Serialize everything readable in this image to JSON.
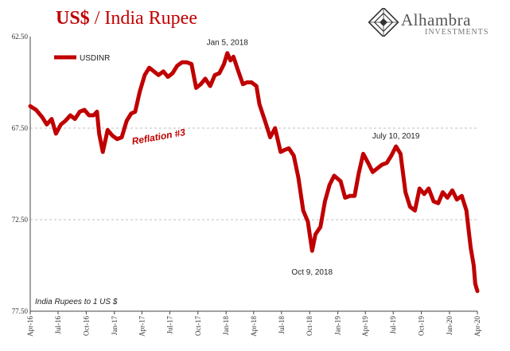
{
  "title": {
    "part1": "US$",
    "part2": " / India Rupee"
  },
  "logo": {
    "name": "Alhambra",
    "subtitle": "INVESTMENTS",
    "icon": "diamond-lattice-icon"
  },
  "chart_data": {
    "type": "line",
    "inverted_y": true,
    "ylim": [
      62.5,
      77.5
    ],
    "yticks": [
      "62.50",
      "67.50",
      "72.50",
      "77.50"
    ],
    "grid": "horizontal dashed",
    "xlim": [
      "2016-04-01",
      "2020-04-01"
    ],
    "xticks": [
      "Apr-16",
      "Jul-16",
      "Oct-16",
      "Jan-17",
      "Apr-17",
      "Jul-17",
      "Oct-17",
      "Jan-18",
      "Apr-18",
      "Jul-18",
      "Oct-18",
      "Jan-19",
      "Apr-19",
      "Jul-19",
      "Oct-19",
      "Jan-20",
      "Apr-20"
    ],
    "legend": {
      "position": "top-left",
      "entries": [
        "USDINR"
      ]
    },
    "series": [
      {
        "name": "USDINR",
        "color": "#c00000",
        "points": [
          [
            "2016-04-01",
            66.3
          ],
          [
            "2016-04-20",
            66.5
          ],
          [
            "2016-05-10",
            66.9
          ],
          [
            "2016-05-25",
            67.3
          ],
          [
            "2016-06-10",
            67.0
          ],
          [
            "2016-06-24",
            67.8
          ],
          [
            "2016-07-10",
            67.3
          ],
          [
            "2016-07-25",
            67.1
          ],
          [
            "2016-08-10",
            66.8
          ],
          [
            "2016-08-25",
            67.0
          ],
          [
            "2016-09-10",
            66.6
          ],
          [
            "2016-09-25",
            66.5
          ],
          [
            "2016-10-10",
            66.8
          ],
          [
            "2016-10-25",
            66.8
          ],
          [
            "2016-11-05",
            66.6
          ],
          [
            "2016-11-12",
            67.8
          ],
          [
            "2016-11-24",
            68.8
          ],
          [
            "2016-12-10",
            67.6
          ],
          [
            "2016-12-25",
            67.9
          ],
          [
            "2017-01-10",
            68.1
          ],
          [
            "2017-01-25",
            68.0
          ],
          [
            "2017-02-10",
            67.1
          ],
          [
            "2017-02-25",
            66.7
          ],
          [
            "2017-03-10",
            66.6
          ],
          [
            "2017-03-25",
            65.5
          ],
          [
            "2017-04-10",
            64.6
          ],
          [
            "2017-04-25",
            64.2
          ],
          [
            "2017-05-10",
            64.4
          ],
          [
            "2017-05-25",
            64.6
          ],
          [
            "2017-06-10",
            64.4
          ],
          [
            "2017-06-25",
            64.7
          ],
          [
            "2017-07-10",
            64.5
          ],
          [
            "2017-07-25",
            64.1
          ],
          [
            "2017-08-10",
            63.9
          ],
          [
            "2017-08-25",
            63.9
          ],
          [
            "2017-09-10",
            64.0
          ],
          [
            "2017-09-25",
            65.3
          ],
          [
            "2017-10-10",
            65.1
          ],
          [
            "2017-10-25",
            64.8
          ],
          [
            "2017-11-10",
            65.2
          ],
          [
            "2017-11-25",
            64.6
          ],
          [
            "2017-12-10",
            64.5
          ],
          [
            "2017-12-25",
            64.0
          ],
          [
            "2018-01-05",
            63.4
          ],
          [
            "2018-01-15",
            63.8
          ],
          [
            "2018-01-25",
            63.6
          ],
          [
            "2018-02-10",
            64.4
          ],
          [
            "2018-02-25",
            65.1
          ],
          [
            "2018-03-10",
            65.0
          ],
          [
            "2018-03-25",
            65.0
          ],
          [
            "2018-04-10",
            65.2
          ],
          [
            "2018-04-20",
            66.2
          ],
          [
            "2018-05-10",
            67.2
          ],
          [
            "2018-05-25",
            68.0
          ],
          [
            "2018-06-10",
            67.5
          ],
          [
            "2018-06-28",
            68.8
          ],
          [
            "2018-07-10",
            68.7
          ],
          [
            "2018-07-25",
            68.6
          ],
          [
            "2018-08-10",
            69.0
          ],
          [
            "2018-08-25",
            70.2
          ],
          [
            "2018-09-10",
            72.0
          ],
          [
            "2018-09-25",
            72.6
          ],
          [
            "2018-10-09",
            74.2
          ],
          [
            "2018-10-20",
            73.3
          ],
          [
            "2018-11-05",
            72.9
          ],
          [
            "2018-11-20",
            71.5
          ],
          [
            "2018-12-05",
            70.6
          ],
          [
            "2018-12-20",
            70.1
          ],
          [
            "2019-01-10",
            70.4
          ],
          [
            "2019-01-25",
            71.3
          ],
          [
            "2019-02-10",
            71.2
          ],
          [
            "2019-02-25",
            71.2
          ],
          [
            "2019-03-10",
            70.0
          ],
          [
            "2019-03-25",
            68.9
          ],
          [
            "2019-04-10",
            69.4
          ],
          [
            "2019-04-25",
            69.9
          ],
          [
            "2019-05-10",
            69.7
          ],
          [
            "2019-05-25",
            69.5
          ],
          [
            "2019-06-10",
            69.4
          ],
          [
            "2019-06-25",
            69.0
          ],
          [
            "2019-07-10",
            68.5
          ],
          [
            "2019-07-25",
            68.9
          ],
          [
            "2019-08-10",
            71.0
          ],
          [
            "2019-08-25",
            71.8
          ],
          [
            "2019-09-10",
            72.0
          ],
          [
            "2019-09-25",
            70.8
          ],
          [
            "2019-10-10",
            71.1
          ],
          [
            "2019-10-25",
            70.8
          ],
          [
            "2019-11-10",
            71.5
          ],
          [
            "2019-11-25",
            71.6
          ],
          [
            "2019-12-10",
            71.0
          ],
          [
            "2019-12-25",
            71.3
          ],
          [
            "2020-01-10",
            70.9
          ],
          [
            "2020-01-25",
            71.4
          ],
          [
            "2020-02-10",
            71.2
          ],
          [
            "2020-02-25",
            72.0
          ],
          [
            "2020-03-10",
            74.0
          ],
          [
            "2020-03-20",
            75.0
          ],
          [
            "2020-03-25",
            76.0
          ],
          [
            "2020-04-01",
            76.4
          ]
        ]
      }
    ],
    "annotations": [
      {
        "text": "Jan 5, 2018",
        "date": "2018-01-05",
        "value": 63.4,
        "placement": "above"
      },
      {
        "text": "Oct 9, 2018",
        "date": "2018-10-09",
        "value": 74.2,
        "placement": "below"
      },
      {
        "text": "July 10, 2019",
        "date": "2019-07-10",
        "value": 68.5,
        "placement": "above"
      },
      {
        "text": "Reflation #3",
        "date": "2017-03-01",
        "value": 68.4,
        "placement": "right",
        "style": "red-italic"
      }
    ],
    "note": "India Rupees to 1 US $"
  }
}
